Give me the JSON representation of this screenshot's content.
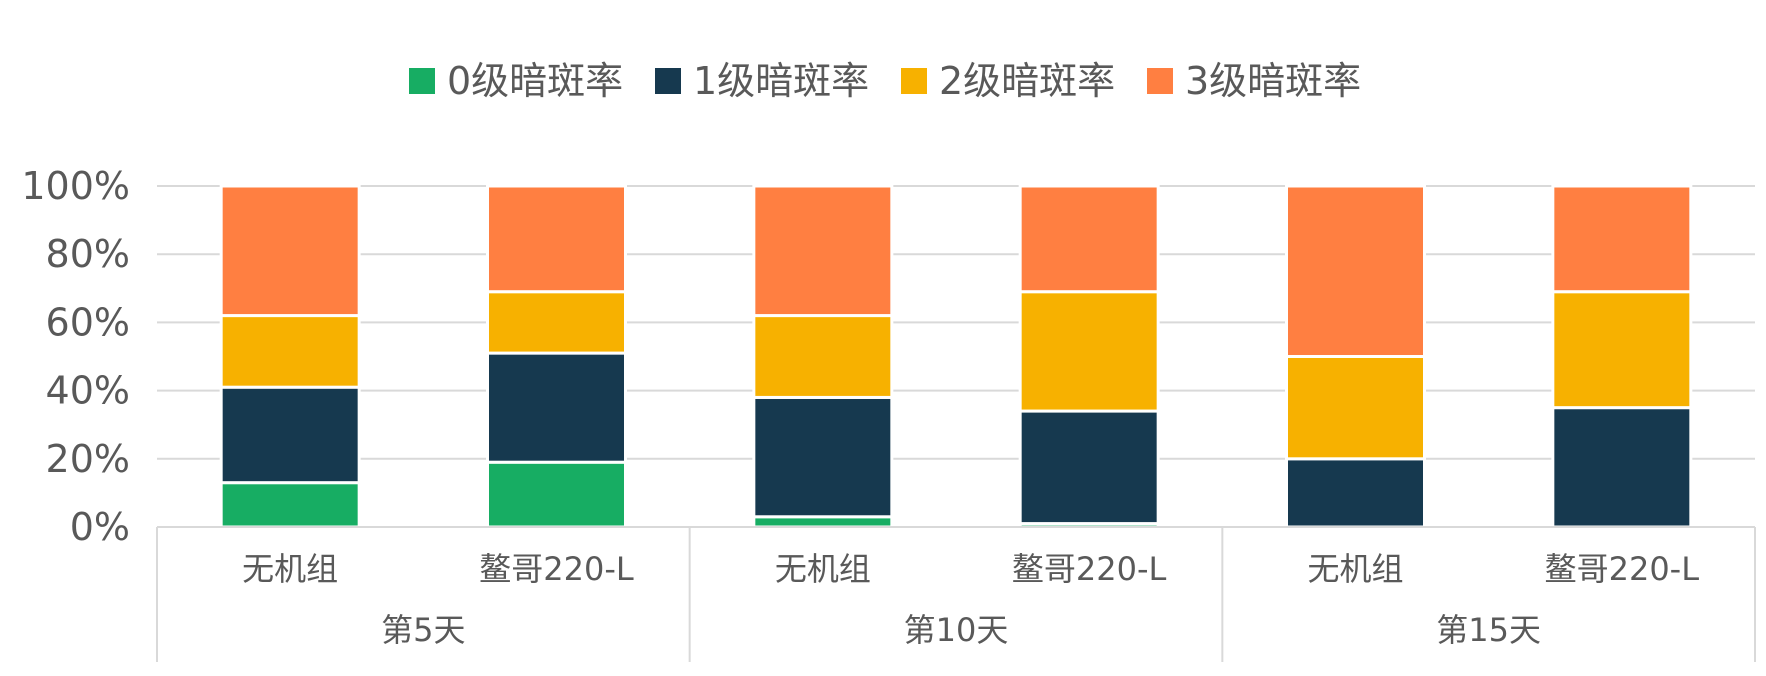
{
  "chart_data": {
    "type": "bar",
    "stacked": true,
    "percent": true,
    "title": "",
    "xlabel": "",
    "ylabel": "",
    "ylim": [
      0,
      100
    ],
    "y_ticks": [
      "0%",
      "20%",
      "40%",
      "60%",
      "80%",
      "100%"
    ],
    "grid": true,
    "legend_position": "top",
    "groups": [
      "第5天",
      "第10天",
      "第15天"
    ],
    "categories": [
      "无机组",
      "鳌哥220-L",
      "无机组",
      "鳌哥220-L",
      "无机组",
      "鳌哥220-L"
    ],
    "series": [
      {
        "name": "0级暗斑率",
        "color": "#17AD63",
        "values": [
          13,
          19,
          3,
          1,
          0,
          0
        ]
      },
      {
        "name": "1级暗斑率",
        "color": "#16394F",
        "values": [
          28,
          32,
          35,
          33,
          20,
          35
        ]
      },
      {
        "name": "2级暗斑率",
        "color": "#F7B100",
        "values": [
          21,
          18,
          24,
          35,
          30,
          34
        ]
      },
      {
        "name": "3级暗斑率",
        "color": "#FF7F41",
        "values": [
          38,
          31,
          38,
          31,
          50,
          31
        ]
      }
    ]
  }
}
